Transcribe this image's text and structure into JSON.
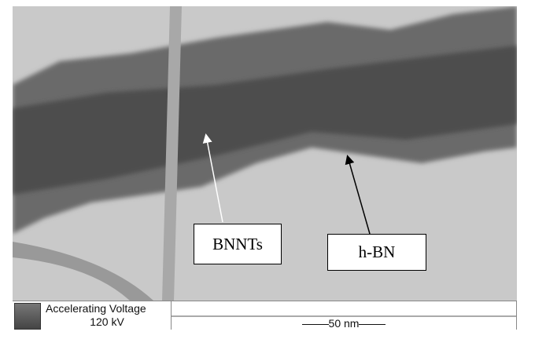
{
  "annotations": {
    "bnnt_label": "BNNTs",
    "hbn_label": "h-BN"
  },
  "info_bar": {
    "icon": "microscope-icon",
    "voltage_label": "Accelerating Voltage",
    "voltage_value": "120 kV",
    "scale_bar_label": "50 nm"
  }
}
